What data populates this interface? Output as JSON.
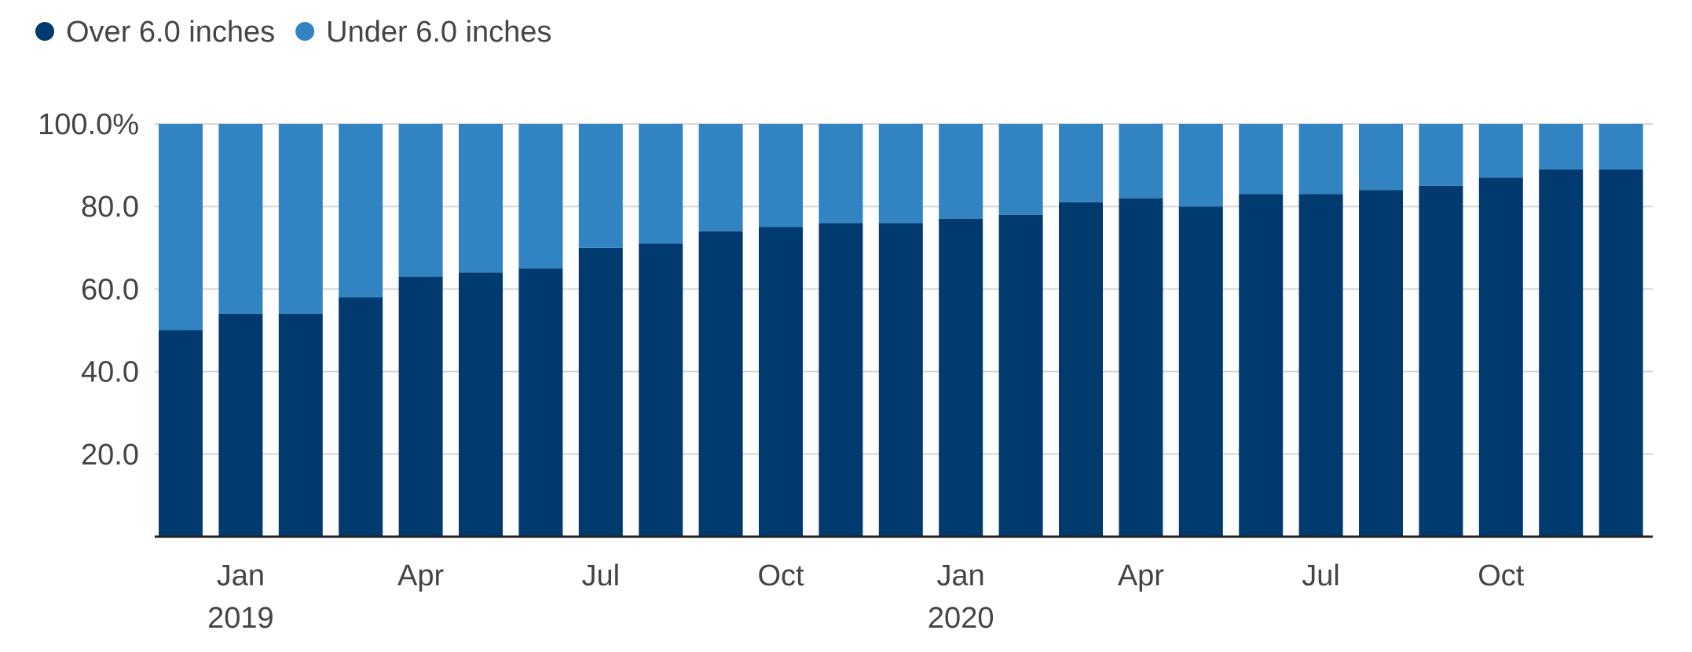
{
  "chart_data": {
    "type": "bar",
    "stacked": true,
    "title": "",
    "xlabel": "",
    "ylabel": "",
    "ylim": [
      0,
      100
    ],
    "y_ticks": [
      {
        "value": 20,
        "label": "20.0"
      },
      {
        "value": 40,
        "label": "40.0"
      },
      {
        "value": 60,
        "label": "60.0"
      },
      {
        "value": 80,
        "label": "80.0"
      },
      {
        "value": 100,
        "label": "100.0%"
      }
    ],
    "grid": true,
    "legend_position": "top-left",
    "categories": [
      "Dec 2018",
      "Jan 2019",
      "Feb 2019",
      "Mar 2019",
      "Apr 2019",
      "May 2019",
      "Jun 2019",
      "Jul 2019",
      "Aug 2019",
      "Sep 2019",
      "Oct 2019",
      "Nov 2019",
      "Dec 2019",
      "Jan 2020",
      "Feb 2020",
      "Mar 2020",
      "Apr 2020",
      "May 2020",
      "Jun 2020",
      "Jul 2020",
      "Aug 2020",
      "Sep 2020",
      "Oct 2020",
      "Nov 2020",
      "Dec 2020"
    ],
    "x_tick_labels": [
      {
        "index": 1,
        "label": "Jan",
        "sublabel": "2019"
      },
      {
        "index": 4,
        "label": "Apr",
        "sublabel": ""
      },
      {
        "index": 7,
        "label": "Jul",
        "sublabel": ""
      },
      {
        "index": 10,
        "label": "Oct",
        "sublabel": ""
      },
      {
        "index": 13,
        "label": "Jan",
        "sublabel": "2020"
      },
      {
        "index": 16,
        "label": "Apr",
        "sublabel": ""
      },
      {
        "index": 19,
        "label": "Jul",
        "sublabel": ""
      },
      {
        "index": 22,
        "label": "Oct",
        "sublabel": ""
      }
    ],
    "series": [
      {
        "name": "Over 6.0 inches",
        "color": "#003a6f",
        "values": [
          50,
          54,
          54,
          58,
          63,
          64,
          65,
          70,
          71,
          74,
          75,
          76,
          76,
          77,
          78,
          81,
          82,
          80,
          83,
          83,
          84,
          85,
          87,
          89,
          89
        ]
      },
      {
        "name": "Under 6.0 inches",
        "color": "#3283c1",
        "values": [
          50,
          46,
          46,
          42,
          37,
          36,
          35,
          30,
          29,
          26,
          25,
          24,
          24,
          23,
          22,
          19,
          18,
          20,
          17,
          17,
          16,
          15,
          13,
          11,
          11
        ]
      }
    ]
  }
}
